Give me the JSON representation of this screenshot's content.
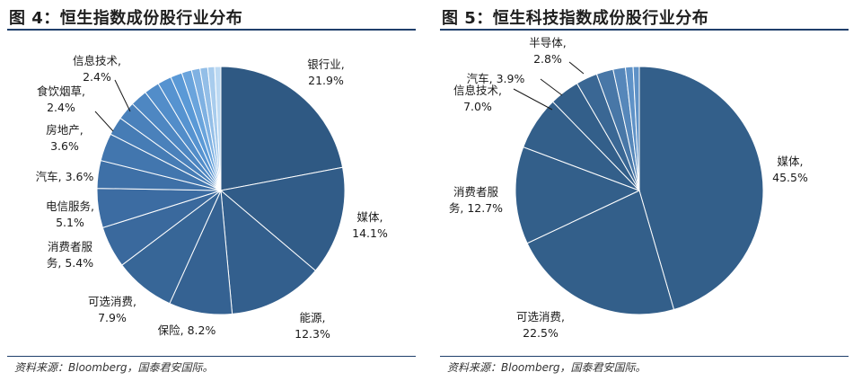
{
  "source_prefix": "资料来源：",
  "source_body": "Bloomberg，国泰君安国际。",
  "colors": {
    "rule": "#1f3f6b",
    "left_dark": "#2f5983",
    "left_mid": "#3d6ea5",
    "left_light": "#5b9ad8",
    "left_pale": "#bcd9f2",
    "right_dark": "#335f8a",
    "right_light": "#5f92c7"
  },
  "chart_data": [
    {
      "type": "pie",
      "title": "图 4：恒生指数成份股行业分布",
      "slices": [
        {
          "label": [
            "银行业,",
            "21.9%"
          ],
          "value": 21.9
        },
        {
          "label": [
            "媒体,",
            "14.1%"
          ],
          "value": 14.1
        },
        {
          "label": [
            "能源,",
            "12.3%"
          ],
          "value": 12.3
        },
        {
          "label": [
            "保险, 8.2%"
          ],
          "value": 8.2
        },
        {
          "label": [
            "可选消费,",
            "7.9%"
          ],
          "value": 7.9
        },
        {
          "label": [
            "消费者服",
            "务, 5.4%"
          ],
          "value": 5.4
        },
        {
          "label": [
            "电信服务,",
            "5.1%"
          ],
          "value": 5.1
        },
        {
          "label": [
            "汽车, 3.6%"
          ],
          "value": 3.6
        },
        {
          "label": [
            "房地产,",
            "3.6%"
          ],
          "value": 3.6
        },
        {
          "label": [
            "食饮烟草,",
            "2.4%"
          ],
          "value": 2.4
        },
        {
          "label": [
            "信息技术,",
            "2.4%"
          ],
          "value": 2.4
        },
        {
          "label": null,
          "value": 2.2
        },
        {
          "label": null,
          "value": 2.0
        },
        {
          "label": null,
          "value": 1.8
        },
        {
          "label": null,
          "value": 1.5
        },
        {
          "label": null,
          "value": 1.3
        },
        {
          "label": null,
          "value": 1.1
        },
        {
          "label": null,
          "value": 1.0
        },
        {
          "label": null,
          "value": 0.9
        },
        {
          "label": null,
          "value": 0.8
        }
      ]
    },
    {
      "type": "pie",
      "title": "图 5：恒生科技指数成份股行业分布",
      "slices": [
        {
          "label": [
            "媒体,",
            "45.5%"
          ],
          "value": 45.5
        },
        {
          "label": [
            "可选消费,",
            "22.5%"
          ],
          "value": 22.5
        },
        {
          "label": [
            "消费者服",
            "务, 12.7%"
          ],
          "value": 12.7
        },
        {
          "label": [
            "信息技术,",
            "7.0%"
          ],
          "value": 7.0
        },
        {
          "label": [
            "汽车, 3.9%"
          ],
          "value": 3.9
        },
        {
          "label": [
            "半导体,",
            "2.8%"
          ],
          "value": 2.8
        },
        {
          "label": null,
          "value": 2.2
        },
        {
          "label": null,
          "value": 1.6
        },
        {
          "label": null,
          "value": 1.0
        },
        {
          "label": null,
          "value": 0.8
        }
      ]
    }
  ]
}
